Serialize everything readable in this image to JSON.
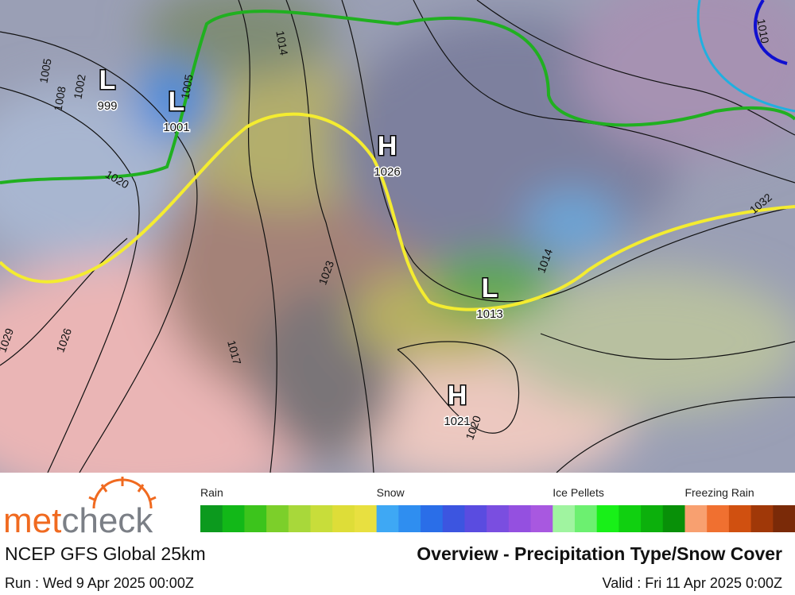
{
  "map": {
    "pressure_centers": [
      {
        "symbol": "L",
        "value": "999"
      },
      {
        "symbol": "L",
        "value": "1001"
      },
      {
        "symbol": "H",
        "value": "1026"
      },
      {
        "symbol": "L",
        "value": "1013"
      },
      {
        "symbol": "H",
        "value": "1021"
      }
    ],
    "isobar_labels": [
      "1005",
      "1008",
      "1002",
      "1005",
      "1014",
      "1020",
      "1023",
      "1026",
      "1029",
      "1032",
      "1017",
      "1020",
      "1014",
      "1010"
    ]
  },
  "legend": [
    {
      "label": "Rain",
      "colors": [
        "#0c9a1e",
        "#12b818",
        "#3cc41c",
        "#7ccf2a",
        "#a8d83a",
        "#c8dd3a",
        "#dedd38",
        "#e8e040"
      ]
    },
    {
      "label": "Snow",
      "colors": [
        "#3ea8f4",
        "#2f8ef0",
        "#2a6ee8",
        "#3c55e0",
        "#5a4ce0",
        "#7a4ee0",
        "#9450e0",
        "#a858e0"
      ]
    },
    {
      "label": "Ice Pellets",
      "colors": [
        "#a0f4a0",
        "#6cf070",
        "#18f018",
        "#10d010",
        "#0cb00c",
        "#089008"
      ]
    },
    {
      "label": "Freezing Rain",
      "colors": [
        "#f8a070",
        "#f07030",
        "#d05010",
        "#a03808",
        "#7a2a08"
      ]
    }
  ],
  "footer": {
    "brand": [
      "met",
      "check"
    ],
    "model": "NCEP GFS Global 25km",
    "title": "Overview - Precipitation Type/Snow Cover",
    "run": "Run : Wed 9 Apr 2025 00:00Z",
    "valid": "Valid : Fri 11 Apr 2025 0:00Z"
  }
}
